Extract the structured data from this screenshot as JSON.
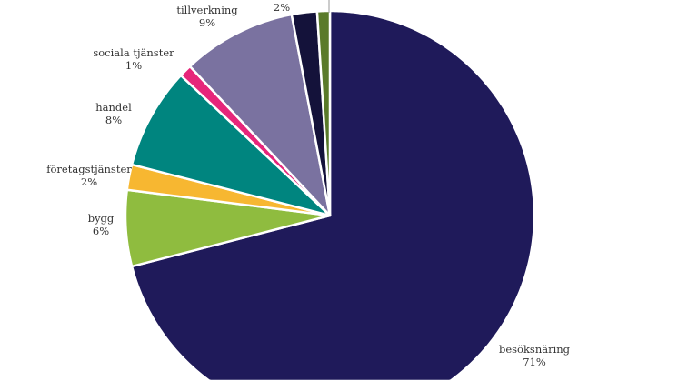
{
  "chart_data": {
    "type": "pie",
    "title": "",
    "start": "top",
    "direction": "clockwise",
    "slices": [
      {
        "name": "besöksnäring",
        "label": "71%",
        "value": 71,
        "color": "#1f1a5a"
      },
      {
        "name": "bygg",
        "label": "6%",
        "value": 6,
        "color": "#8fbc3f"
      },
      {
        "name": "företagstjänster",
        "label": "2%",
        "value": 2,
        "color": "#f7b731"
      },
      {
        "name": "handel",
        "label": "8%",
        "value": 8,
        "color": "#00857f"
      },
      {
        "name": "sociala tjänster",
        "label": "1%",
        "value": 1,
        "color": "#e6267a"
      },
      {
        "name": "tillverkning",
        "label": "9%",
        "value": 9,
        "color": "#7a72a0"
      },
      {
        "name": "",
        "label": "2%",
        "value": 2,
        "color": "#14123a"
      },
      {
        "name": "",
        "label": "",
        "value": 1,
        "color": "#5a7a2a"
      }
    ]
  }
}
